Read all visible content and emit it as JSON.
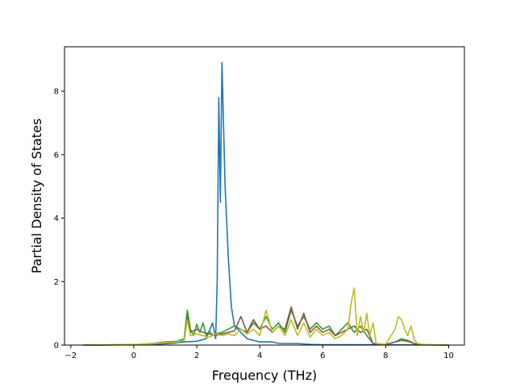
{
  "chart_data": {
    "type": "line",
    "title": "",
    "xlabel": "Frequency (THz)",
    "ylabel": "Partial Density of States",
    "xlim": [
      -2.2,
      10.5
    ],
    "ylim": [
      0,
      9.4
    ],
    "xticks": [
      -2,
      0,
      2,
      4,
      6,
      8,
      10
    ],
    "yticks": [
      0,
      2,
      4,
      6,
      8
    ],
    "grid": false,
    "legend": "none",
    "series": [
      {
        "color": "#1f77b4",
        "points": [
          [
            -1.6,
            0
          ],
          [
            0,
            0.01
          ],
          [
            0.8,
            0.03
          ],
          [
            1.2,
            0.05
          ],
          [
            1.6,
            0.1
          ],
          [
            2.0,
            0.12
          ],
          [
            2.3,
            0.2
          ],
          [
            2.5,
            0.7
          ],
          [
            2.6,
            0.2
          ],
          [
            2.65,
            2.0
          ],
          [
            2.7,
            7.8
          ],
          [
            2.75,
            4.5
          ],
          [
            2.8,
            8.9
          ],
          [
            2.9,
            5.0
          ],
          [
            3.0,
            2.8
          ],
          [
            3.1,
            1.2
          ],
          [
            3.2,
            0.6
          ],
          [
            3.4,
            0.4
          ],
          [
            3.6,
            0.2
          ],
          [
            3.8,
            0.15
          ],
          [
            4.0,
            0.1
          ],
          [
            4.4,
            0.1
          ],
          [
            4.6,
            0.05
          ],
          [
            5.2,
            0.05
          ],
          [
            5.6,
            0.02
          ],
          [
            6.0,
            0.01
          ],
          [
            8.0,
            0.01
          ],
          [
            10.0,
            0
          ]
        ]
      },
      {
        "color": "#2ca02c",
        "points": [
          [
            -1.6,
            0
          ],
          [
            0,
            0.01
          ],
          [
            0.6,
            0.05
          ],
          [
            1.0,
            0.1
          ],
          [
            1.4,
            0.12
          ],
          [
            1.6,
            0.2
          ],
          [
            1.7,
            1.1
          ],
          [
            1.8,
            0.5
          ],
          [
            1.9,
            0.3
          ],
          [
            2.0,
            0.65
          ],
          [
            2.1,
            0.4
          ],
          [
            2.2,
            0.7
          ],
          [
            2.3,
            0.3
          ],
          [
            2.4,
            0.45
          ],
          [
            2.5,
            0.3
          ],
          [
            2.6,
            0.35
          ],
          [
            2.8,
            0.4
          ],
          [
            3.0,
            0.5
          ],
          [
            3.2,
            0.6
          ],
          [
            3.4,
            0.5
          ],
          [
            3.6,
            0.4
          ],
          [
            3.8,
            0.7
          ],
          [
            4.0,
            0.5
          ],
          [
            4.2,
            0.9
          ],
          [
            4.4,
            0.5
          ],
          [
            4.6,
            0.7
          ],
          [
            4.8,
            0.4
          ],
          [
            5.0,
            1.1
          ],
          [
            5.2,
            0.6
          ],
          [
            5.4,
            0.9
          ],
          [
            5.6,
            0.5
          ],
          [
            5.8,
            0.7
          ],
          [
            6.0,
            0.5
          ],
          [
            6.2,
            0.6
          ],
          [
            6.4,
            0.3
          ],
          [
            6.6,
            0.5
          ],
          [
            6.8,
            0.7
          ],
          [
            7.0,
            0.4
          ],
          [
            7.2,
            0.6
          ],
          [
            7.4,
            0.3
          ],
          [
            7.6,
            0.05
          ],
          [
            8.0,
            0.02
          ],
          [
            8.3,
            0.1
          ],
          [
            8.5,
            0.2
          ],
          [
            8.7,
            0.15
          ],
          [
            8.9,
            0.05
          ],
          [
            9.2,
            0.01
          ],
          [
            10.0,
            0
          ]
        ]
      },
      {
        "color": "#8c564b",
        "points": [
          [
            -1.6,
            0
          ],
          [
            0,
            0.01
          ],
          [
            0.6,
            0.04
          ],
          [
            1.0,
            0.08
          ],
          [
            1.4,
            0.1
          ],
          [
            1.6,
            0.15
          ],
          [
            1.7,
            0.9
          ],
          [
            1.8,
            0.4
          ],
          [
            2.0,
            0.5
          ],
          [
            2.2,
            0.4
          ],
          [
            2.4,
            0.35
          ],
          [
            2.6,
            0.3
          ],
          [
            2.8,
            0.35
          ],
          [
            3.0,
            0.4
          ],
          [
            3.2,
            0.45
          ],
          [
            3.4,
            0.9
          ],
          [
            3.6,
            0.4
          ],
          [
            3.8,
            0.8
          ],
          [
            4.0,
            0.5
          ],
          [
            4.2,
            0.6
          ],
          [
            4.4,
            0.4
          ],
          [
            4.6,
            0.6
          ],
          [
            4.8,
            0.5
          ],
          [
            5.0,
            1.2
          ],
          [
            5.2,
            0.5
          ],
          [
            5.4,
            1.0
          ],
          [
            5.6,
            0.4
          ],
          [
            5.8,
            0.6
          ],
          [
            6.0,
            0.4
          ],
          [
            6.2,
            0.5
          ],
          [
            6.4,
            0.3
          ],
          [
            6.6,
            0.4
          ],
          [
            6.8,
            0.5
          ],
          [
            7.0,
            0.6
          ],
          [
            7.2,
            0.4
          ],
          [
            7.4,
            0.5
          ],
          [
            7.6,
            0.05
          ],
          [
            8.0,
            0.02
          ],
          [
            8.3,
            0.1
          ],
          [
            8.5,
            0.15
          ],
          [
            8.7,
            0.12
          ],
          [
            8.9,
            0.05
          ],
          [
            9.2,
            0.01
          ],
          [
            10.0,
            0
          ]
        ]
      },
      {
        "color": "#bcbd22",
        "points": [
          [
            -1.6,
            0
          ],
          [
            0,
            0.01
          ],
          [
            0.6,
            0.04
          ],
          [
            1.0,
            0.08
          ],
          [
            1.4,
            0.1
          ],
          [
            1.6,
            0.15
          ],
          [
            1.7,
            0.8
          ],
          [
            1.8,
            0.3
          ],
          [
            2.0,
            0.35
          ],
          [
            2.2,
            0.3
          ],
          [
            2.4,
            0.25
          ],
          [
            2.6,
            0.35
          ],
          [
            2.8,
            0.3
          ],
          [
            3.0,
            0.35
          ],
          [
            3.2,
            0.3
          ],
          [
            3.4,
            0.5
          ],
          [
            3.6,
            0.35
          ],
          [
            3.8,
            0.5
          ],
          [
            4.0,
            0.3
          ],
          [
            4.2,
            1.1
          ],
          [
            4.4,
            0.4
          ],
          [
            4.6,
            0.6
          ],
          [
            4.8,
            0.3
          ],
          [
            5.0,
            0.8
          ],
          [
            5.2,
            0.3
          ],
          [
            5.4,
            0.7
          ],
          [
            5.6,
            0.25
          ],
          [
            5.8,
            0.5
          ],
          [
            6.0,
            0.3
          ],
          [
            6.2,
            0.4
          ],
          [
            6.4,
            0.2
          ],
          [
            6.6,
            0.3
          ],
          [
            6.8,
            0.5
          ],
          [
            6.9,
            1.3
          ],
          [
            7.0,
            1.8
          ],
          [
            7.1,
            0.3
          ],
          [
            7.2,
            0.9
          ],
          [
            7.3,
            0.4
          ],
          [
            7.4,
            1.0
          ],
          [
            7.5,
            0.3
          ],
          [
            7.6,
            0.7
          ],
          [
            7.7,
            0.05
          ],
          [
            8.0,
            0.02
          ],
          [
            8.3,
            0.5
          ],
          [
            8.4,
            0.9
          ],
          [
            8.5,
            0.8
          ],
          [
            8.6,
            0.5
          ],
          [
            8.7,
            0.3
          ],
          [
            8.8,
            0.6
          ],
          [
            8.9,
            0.2
          ],
          [
            9.0,
            0.05
          ],
          [
            9.2,
            0.01
          ],
          [
            10.0,
            0
          ]
        ]
      }
    ]
  }
}
